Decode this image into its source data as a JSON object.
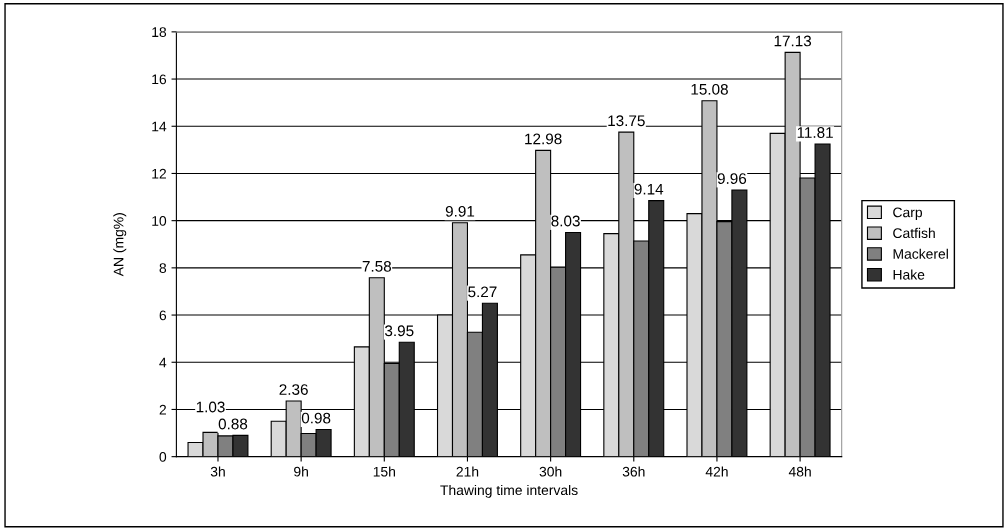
{
  "chart_data": {
    "type": "bar",
    "xlabel": "Thawing time intervals",
    "ylabel": "AN (mg%)",
    "categories": [
      "3h",
      "9h",
      "15h",
      "21h",
      "30h",
      "36h",
      "42h",
      "48h"
    ],
    "series": [
      {
        "name": "Carp",
        "color": "#d9d9d9",
        "values": [
          0.6,
          1.5,
          4.65,
          6.0,
          8.55,
          9.45,
          10.3,
          13.7
        ]
      },
      {
        "name": "Catfish",
        "color": "#bfbfbf",
        "values": [
          1.03,
          2.36,
          7.58,
          9.91,
          12.98,
          13.75,
          15.08,
          17.13
        ],
        "value_labels": [
          "1.03",
          "2.36",
          "7.58",
          "9.91",
          "12.98",
          "13.75",
          "15.08",
          "17.13"
        ]
      },
      {
        "name": "Mackerel",
        "color": "#808080",
        "values": [
          0.88,
          0.98,
          3.95,
          5.27,
          8.03,
          9.14,
          9.96,
          11.81
        ],
        "value_labels": [
          "0.88",
          "0.98",
          "3.95",
          "5.27",
          "8.03",
          "9.14",
          "9.96",
          "11.81"
        ]
      },
      {
        "name": "Hake",
        "color": "#333333",
        "values": [
          0.9,
          1.15,
          4.85,
          6.5,
          9.5,
          10.85,
          11.3,
          13.25
        ]
      }
    ],
    "ylim": [
      0,
      18
    ],
    "yticks": [
      0,
      2,
      4,
      6,
      8,
      10,
      12,
      14,
      16,
      18
    ],
    "grid": "y",
    "legend": "right"
  }
}
